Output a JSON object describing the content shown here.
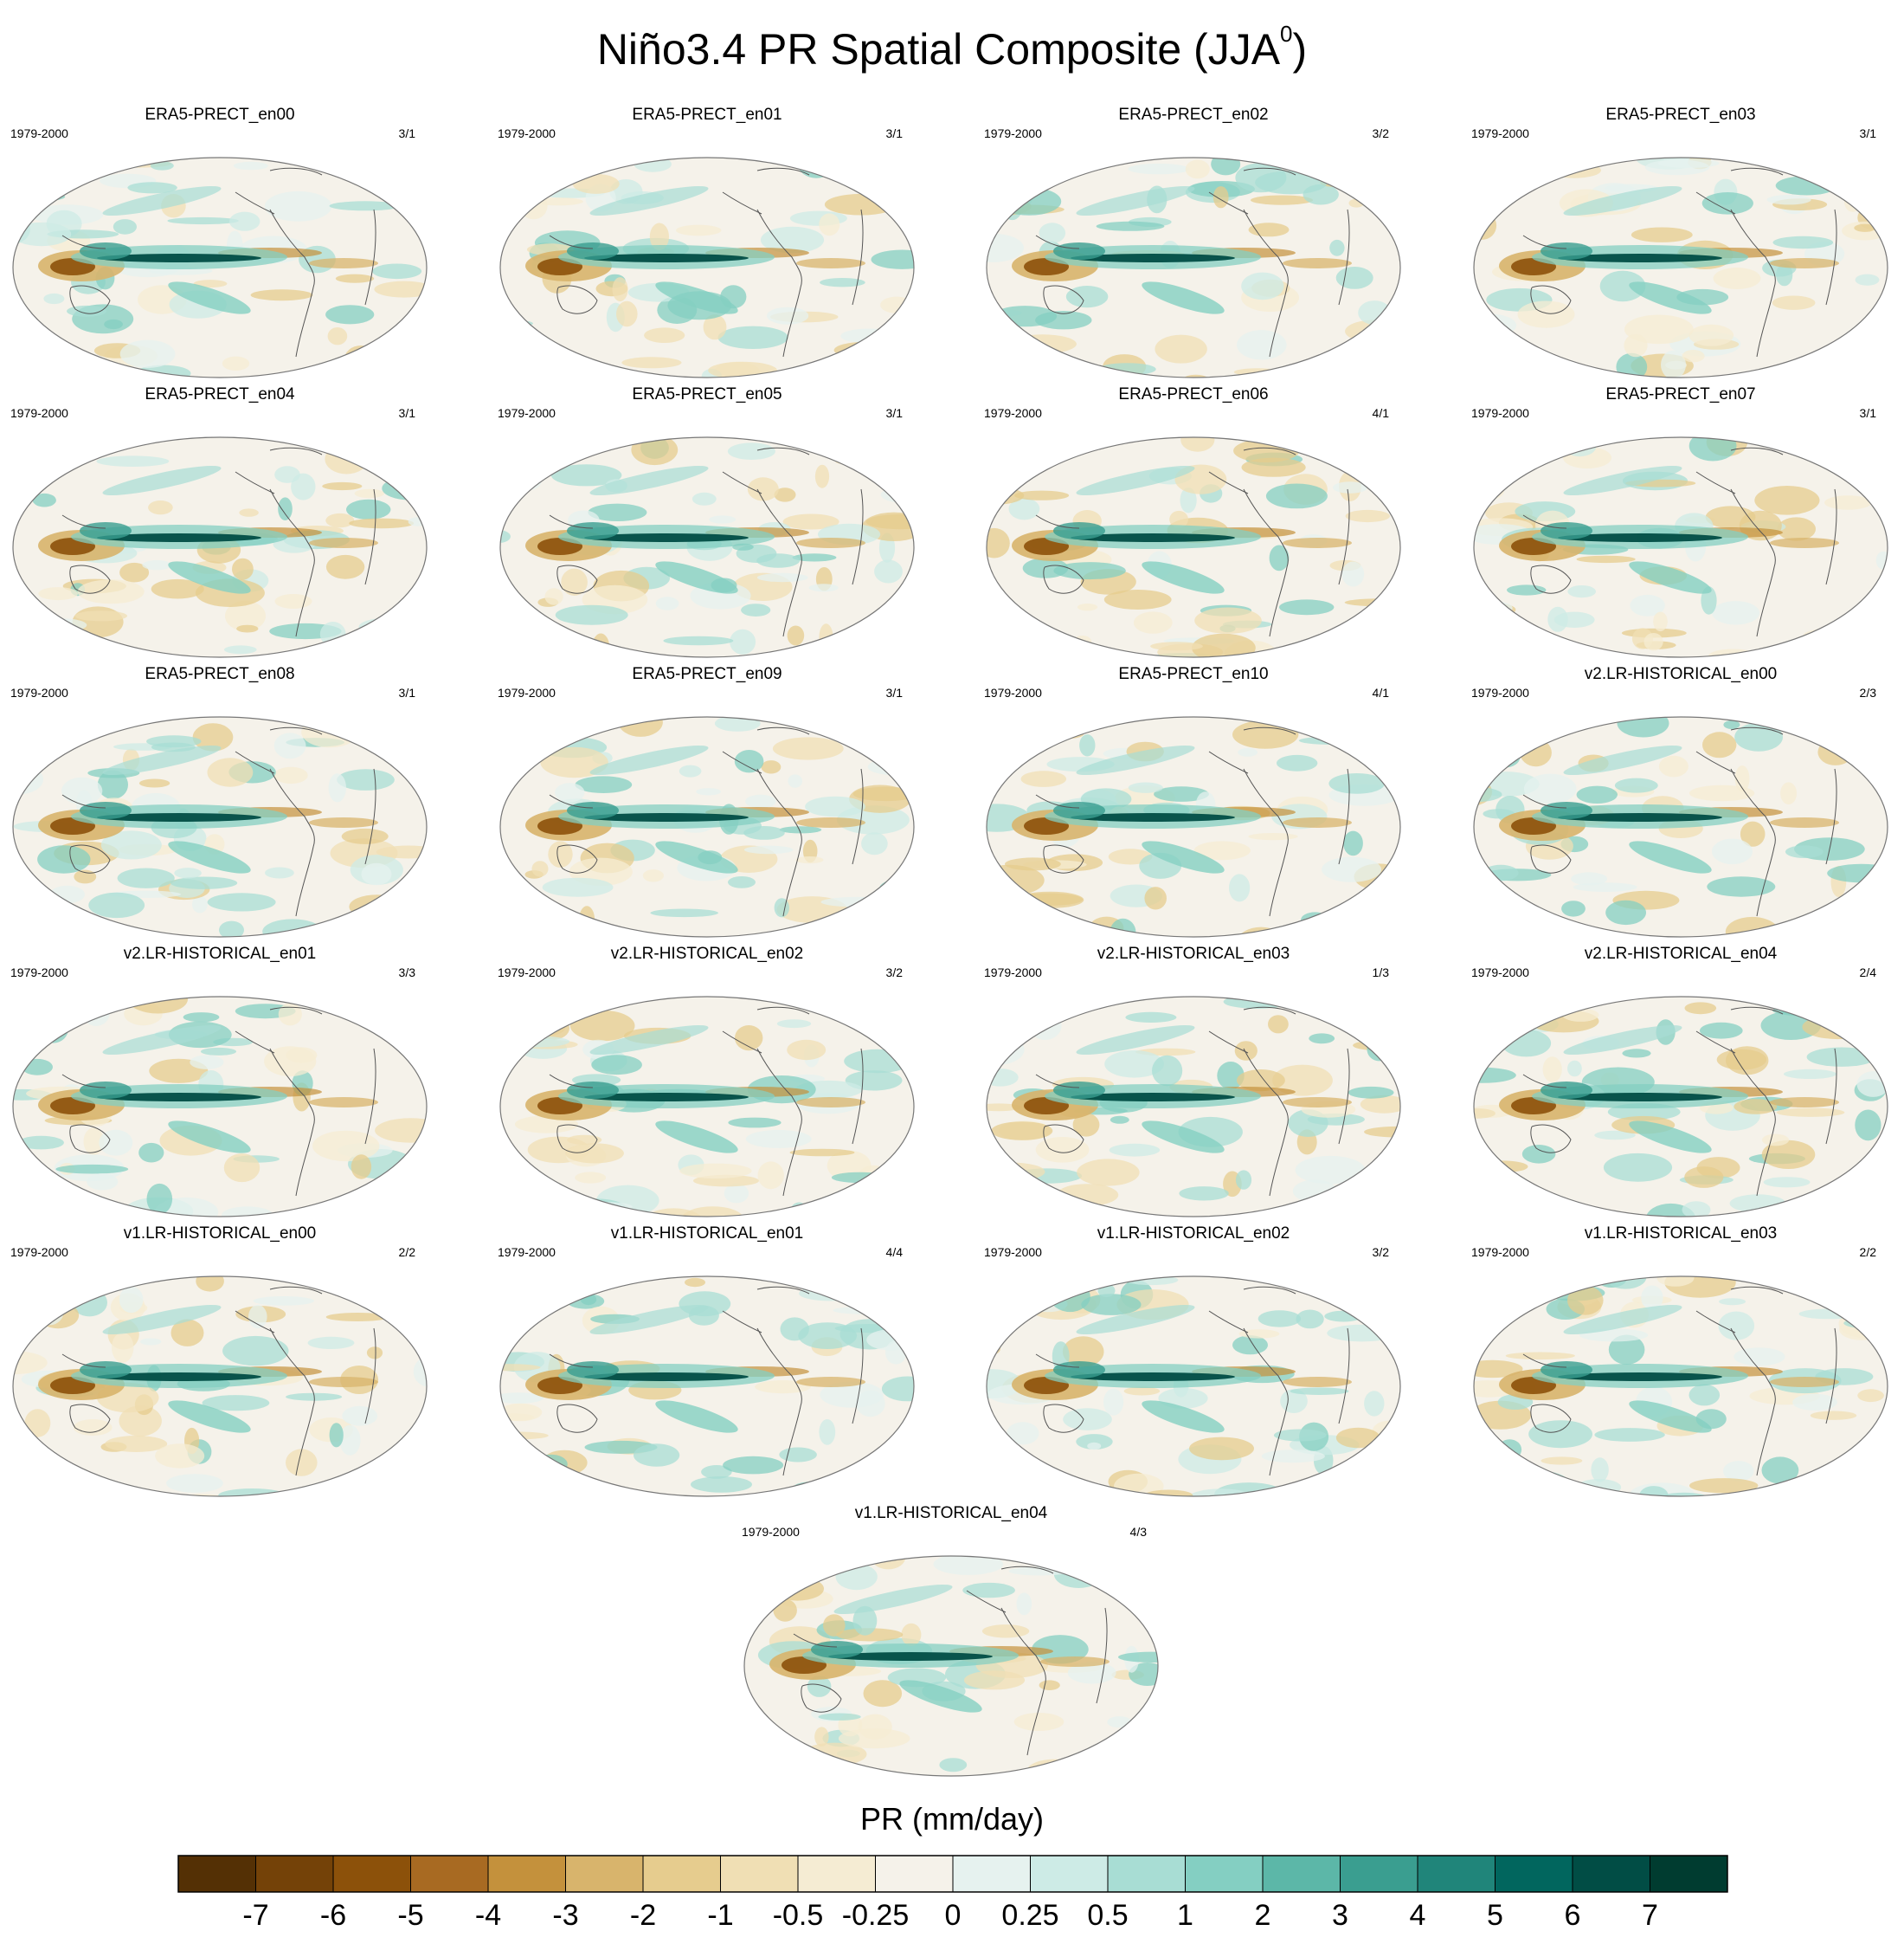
{
  "chart_data": {
    "type": "heatmap",
    "title": "Niño3.4 PR Spatial Composite (JJA",
    "title_superscript": "0",
    "title_suffix": ")",
    "colorbar": {
      "label": "PR (mm/day)",
      "tick_labels": [
        "-7",
        "-6",
        "-5",
        "-4",
        "-3",
        "-2",
        "-1",
        "-0.5",
        "-0.25",
        "0",
        "0.25",
        "0.5",
        "1",
        "2",
        "3",
        "4",
        "5",
        "6",
        "7"
      ],
      "colors": [
        "#543005",
        "#744208",
        "#8c510a",
        "#a86a22",
        "#c4913c",
        "#d8b46c",
        "#e6cc8e",
        "#f0dfb4",
        "#f5ecd3",
        "#f5f2ea",
        "#e6f2ef",
        "#cdebe6",
        "#a8ddd4",
        "#84cfc2",
        "#5cb7a8",
        "#3a9e90",
        "#20857a",
        "#01665e",
        "#014d45",
        "#003c30"
      ]
    },
    "panels": [
      {
        "title": "ERA5-PRECT_en00",
        "years": "1979-2000",
        "ratio": "3/1"
      },
      {
        "title": "ERA5-PRECT_en01",
        "years": "1979-2000",
        "ratio": "3/1"
      },
      {
        "title": "ERA5-PRECT_en02",
        "years": "1979-2000",
        "ratio": "3/2"
      },
      {
        "title": "ERA5-PRECT_en03",
        "years": "1979-2000",
        "ratio": "3/1"
      },
      {
        "title": "ERA5-PRECT_en04",
        "years": "1979-2000",
        "ratio": "3/1"
      },
      {
        "title": "ERA5-PRECT_en05",
        "years": "1979-2000",
        "ratio": "3/1"
      },
      {
        "title": "ERA5-PRECT_en06",
        "years": "1979-2000",
        "ratio": "4/1"
      },
      {
        "title": "ERA5-PRECT_en07",
        "years": "1979-2000",
        "ratio": "3/1"
      },
      {
        "title": "ERA5-PRECT_en08",
        "years": "1979-2000",
        "ratio": "3/1"
      },
      {
        "title": "ERA5-PRECT_en09",
        "years": "1979-2000",
        "ratio": "3/1"
      },
      {
        "title": "ERA5-PRECT_en10",
        "years": "1979-2000",
        "ratio": "4/1"
      },
      {
        "title": "v2.LR-HISTORICAL_en00",
        "years": "1979-2000",
        "ratio": "2/3"
      },
      {
        "title": "v2.LR-HISTORICAL_en01",
        "years": "1979-2000",
        "ratio": "3/3"
      },
      {
        "title": "v2.LR-HISTORICAL_en02",
        "years": "1979-2000",
        "ratio": "3/2"
      },
      {
        "title": "v2.LR-HISTORICAL_en03",
        "years": "1979-2000",
        "ratio": "1/3"
      },
      {
        "title": "v2.LR-HISTORICAL_en04",
        "years": "1979-2000",
        "ratio": "2/4"
      },
      {
        "title": "v1.LR-HISTORICAL_en00",
        "years": "1979-2000",
        "ratio": "2/2"
      },
      {
        "title": "v1.LR-HISTORICAL_en01",
        "years": "1979-2000",
        "ratio": "4/4"
      },
      {
        "title": "v1.LR-HISTORICAL_en02",
        "years": "1979-2000",
        "ratio": "3/2"
      },
      {
        "title": "v1.LR-HISTORICAL_en03",
        "years": "1979-2000",
        "ratio": "2/2"
      },
      {
        "title": "v1.LR-HISTORICAL_en04",
        "years": "1979-2000",
        "ratio": "4/3"
      }
    ]
  }
}
